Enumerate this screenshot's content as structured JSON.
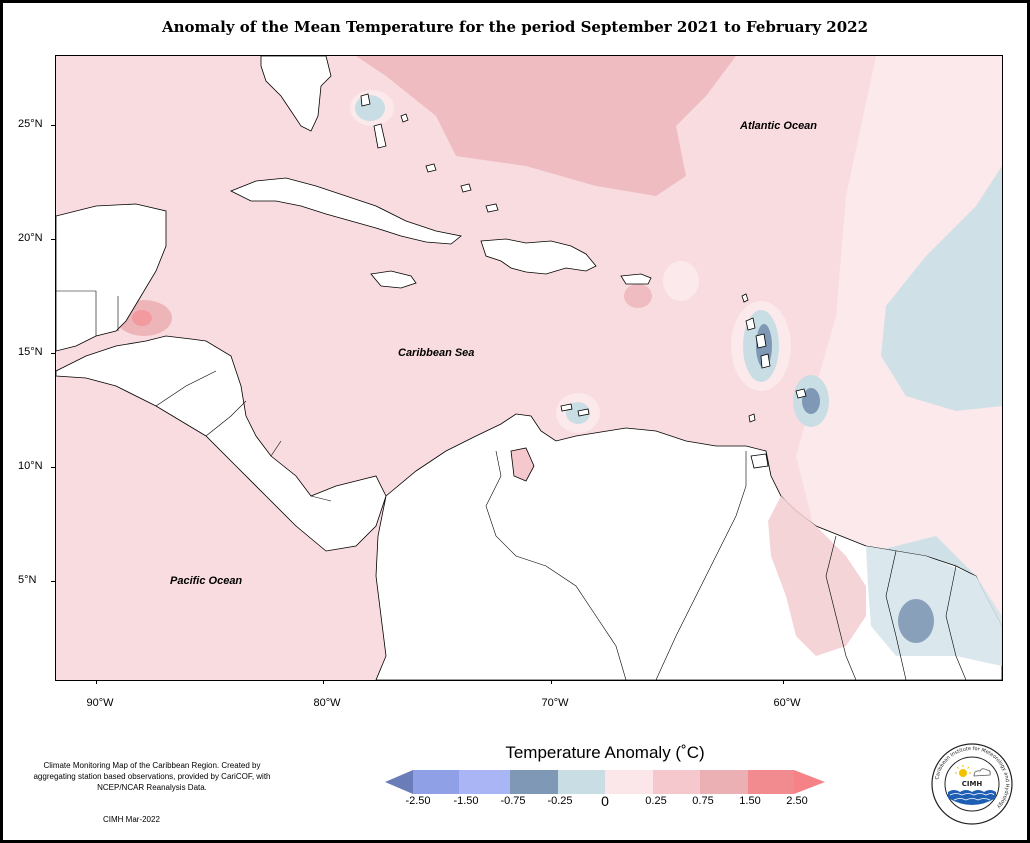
{
  "title": "Anomaly of the Mean Temperature for the period September 2021 to February 2022",
  "map": {
    "ocean_labels": {
      "atlantic": "Atlantic Ocean",
      "caribbean": "Caribbean Sea",
      "pacific": "Pacific Ocean"
    },
    "latitude_labels": [
      "25°N",
      "20°N",
      "15°N",
      "10°N",
      "5°N"
    ],
    "longitude_labels": [
      "90°W",
      "80°W",
      "70°W",
      "60°W"
    ]
  },
  "legend": {
    "title": "Temperature Anomaly (˚C)",
    "breaks": [
      "-2.50",
      "-1.50",
      "-0.75",
      "-0.25",
      "0",
      "0.25",
      "0.75",
      "1.50",
      "2.50"
    ],
    "colors": [
      "#6b7db8",
      "#8fa0e6",
      "#aab5f5",
      "#7f98b5",
      "#c9dde4",
      "#fbe7ea",
      "#f4c8cd",
      "#eab0b4",
      "#f28b8f",
      "#f48286"
    ]
  },
  "info": {
    "description": "Climate Monitoring Map of the Caribbean Region. Created by aggregating station based observations, provided by CariCOF, with NCEP/NCAR Reanalysis Data.",
    "credit": "CIMH Mar-2022"
  },
  "logo": {
    "ring_text": "Caribbean Institute for Meteorology and Hydrology",
    "acronym": "CIMH"
  }
}
